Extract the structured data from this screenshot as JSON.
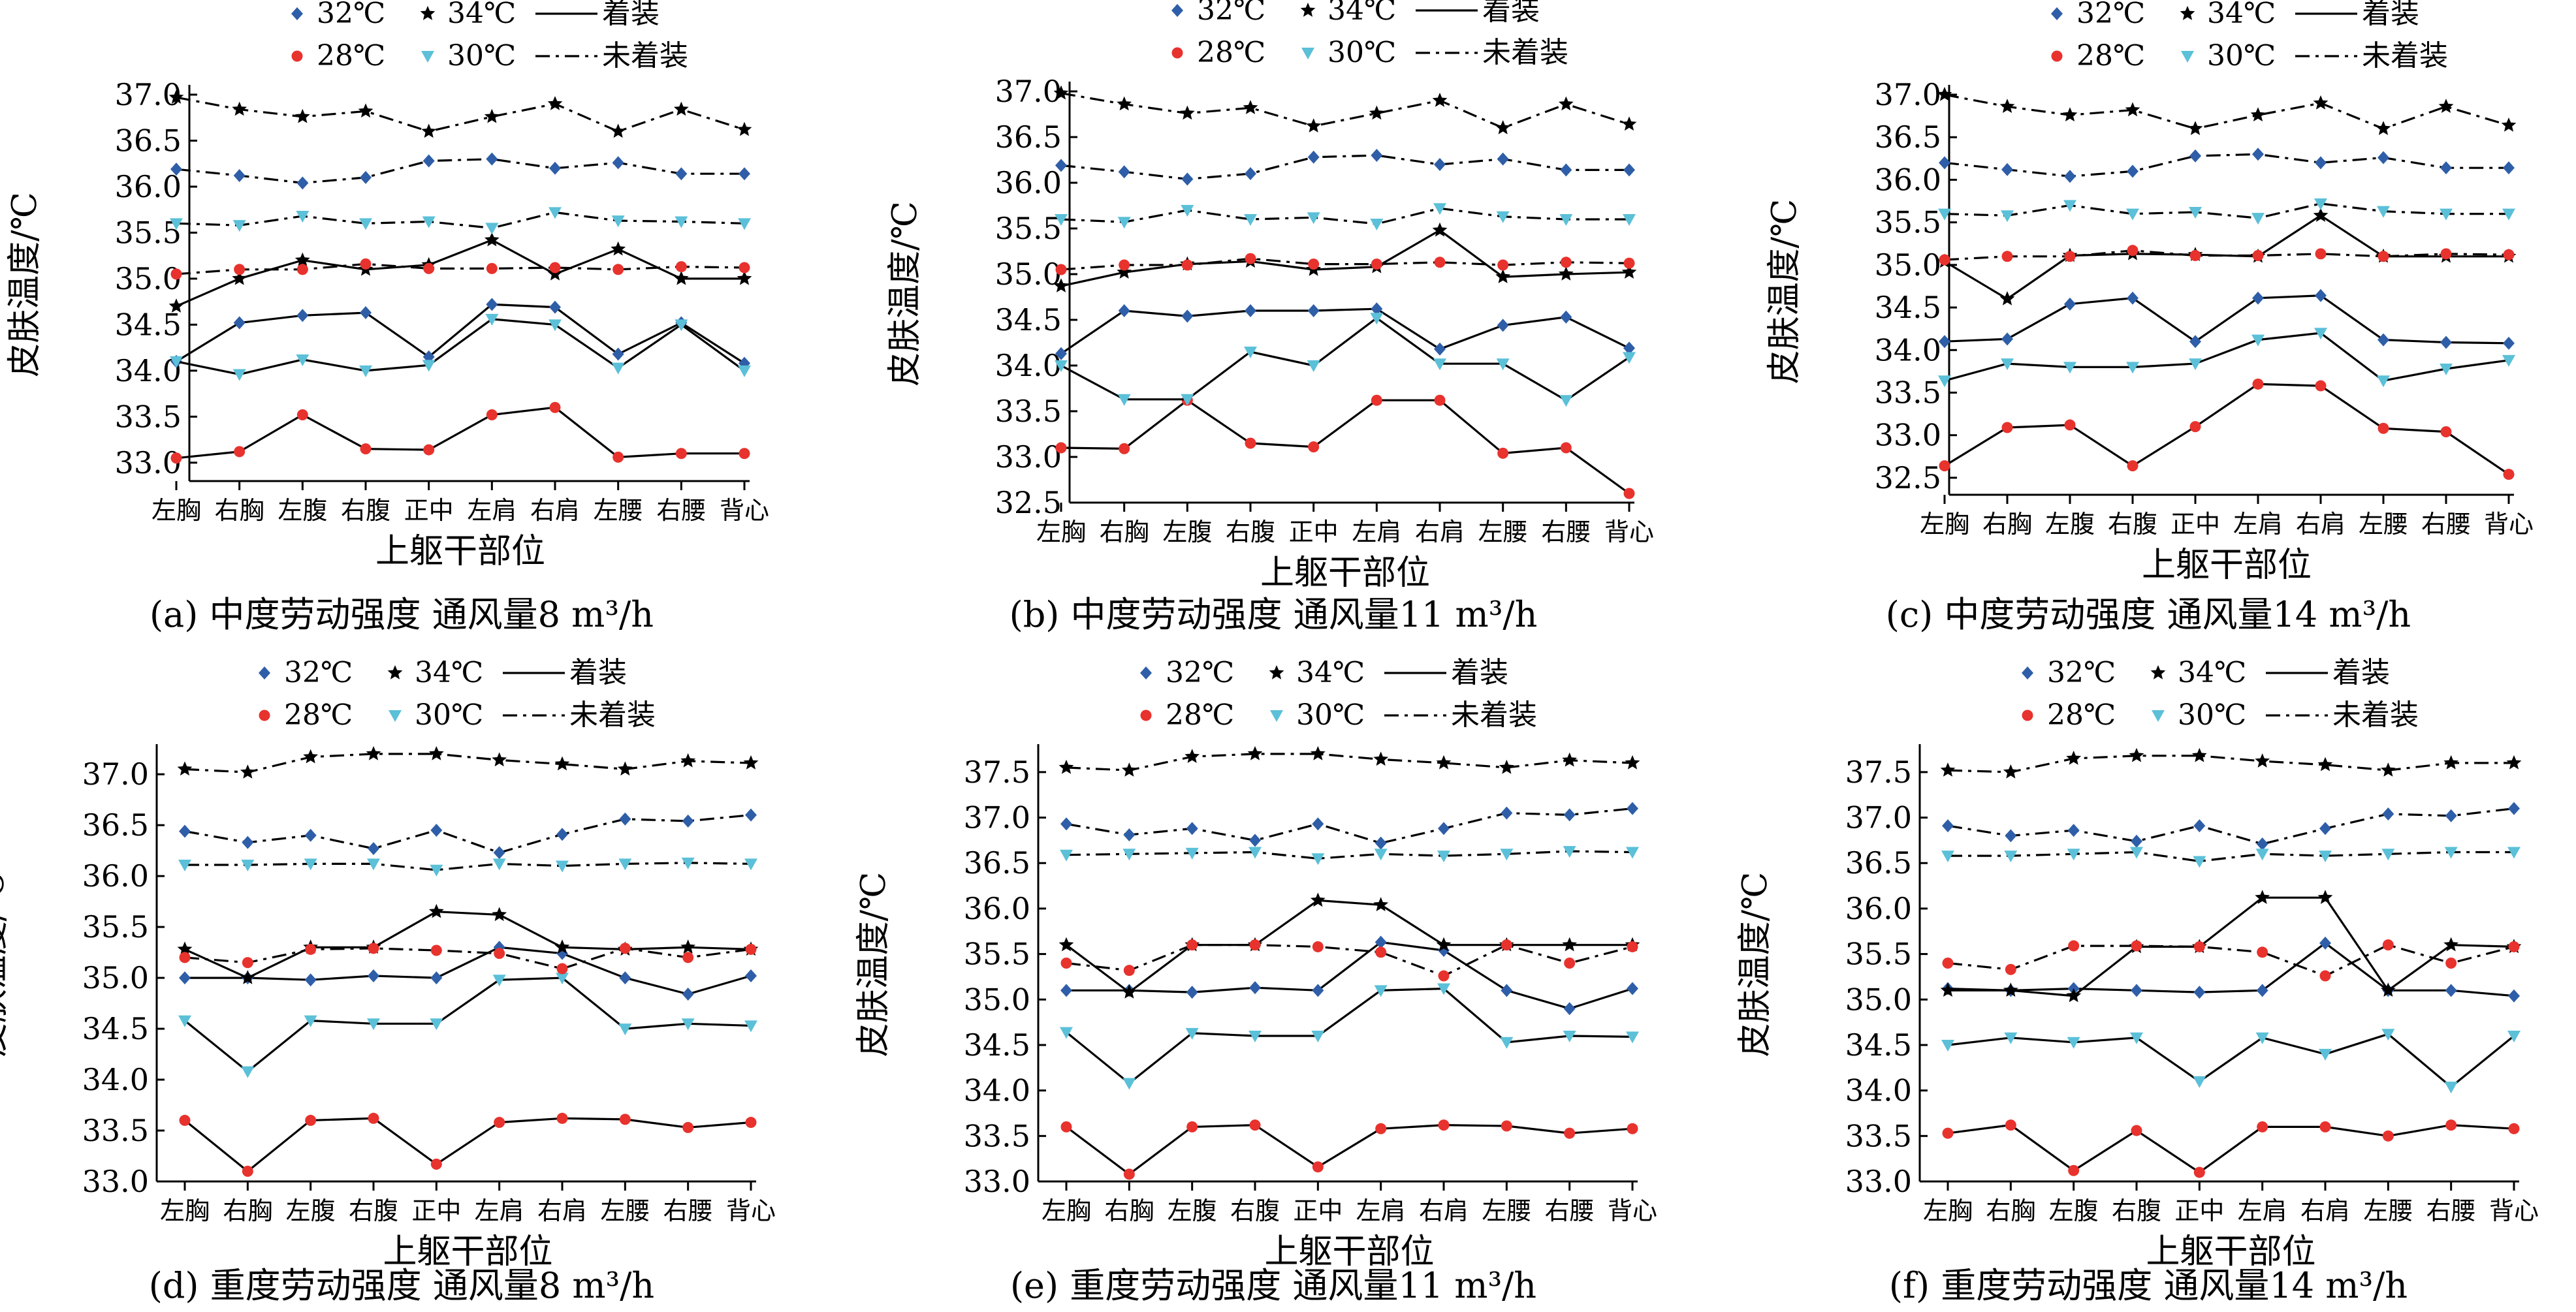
{
  "figure": {
    "legend": {
      "entries": [
        {
          "key": "s32",
          "label": "32℃",
          "marker": "diamond",
          "color": "#2f5ea8"
        },
        {
          "key": "s34",
          "label": "34℃",
          "marker": "star",
          "color": "#000000"
        },
        {
          "key": "solid",
          "label": "着装",
          "line": "solid"
        },
        {
          "key": "s28",
          "label": "28℃",
          "marker": "circle",
          "color": "#e8322d"
        },
        {
          "key": "s30",
          "label": "30℃",
          "marker": "triangle-down",
          "color": "#5bc0d8"
        },
        {
          "key": "dashdot",
          "label": "未着装",
          "line": "dashdot"
        }
      ]
    }
  },
  "chart_data": [
    {
      "type": "line",
      "panel": "a",
      "caption": "(a) 中度劳动强度  通风量8 m³/h",
      "xlabel": "上躯干部位",
      "ylabel": "皮肤温度/℃",
      "categories": [
        "左胸",
        "右胸",
        "左腹",
        "右腹",
        "正中",
        "左肩",
        "右肩",
        "左腰",
        "右腰",
        "背心"
      ],
      "ylim": [
        32.8,
        37.0
      ],
      "yticks": [
        "33.0",
        "33.5",
        "34.0",
        "34.5",
        "35.0",
        "35.5",
        "36.0",
        "36.5",
        "37.0"
      ],
      "series": [
        {
          "name": "32℃",
          "style": "solid",
          "values": [
            34.1,
            34.52,
            34.6,
            34.63,
            34.15,
            34.72,
            34.69,
            34.18,
            34.52,
            34.08
          ]
        },
        {
          "name": "34℃",
          "style": "solid",
          "values": [
            34.7,
            35.0,
            35.2,
            35.1,
            35.15,
            35.42,
            35.05,
            35.32,
            35.0,
            35.0
          ]
        },
        {
          "name": "28℃",
          "style": "solid",
          "values": [
            33.05,
            33.12,
            33.52,
            33.15,
            33.14,
            33.52,
            33.6,
            33.06,
            33.1,
            33.1
          ]
        },
        {
          "name": "30℃",
          "style": "solid",
          "values": [
            34.1,
            33.96,
            34.12,
            34.0,
            34.06,
            34.56,
            34.5,
            34.03,
            34.5,
            34.0
          ]
        },
        {
          "name": "32℃",
          "style": "dashdot",
          "values": [
            36.19,
            36.12,
            36.04,
            36.1,
            36.28,
            36.3,
            36.2,
            36.26,
            36.14,
            36.14
          ]
        },
        {
          "name": "34℃",
          "style": "dashdot",
          "values": [
            36.97,
            36.84,
            36.76,
            36.82,
            36.6,
            36.76,
            36.9,
            36.6,
            36.84,
            36.62
          ]
        },
        {
          "name": "28℃",
          "style": "dashdot",
          "values": [
            35.05,
            35.1,
            35.1,
            35.16,
            35.11,
            35.11,
            35.12,
            35.1,
            35.13,
            35.12
          ]
        },
        {
          "name": "30℃",
          "style": "dashdot",
          "values": [
            35.6,
            35.58,
            35.68,
            35.6,
            35.62,
            35.55,
            35.72,
            35.63,
            35.62,
            35.6
          ]
        }
      ]
    },
    {
      "type": "line",
      "panel": "b",
      "caption": "(b) 中度劳动强度  通风量11 m³/h",
      "xlabel": "上躯干部位",
      "ylabel": "皮肤温度/℃",
      "categories": [
        "左胸",
        "右胸",
        "左腹",
        "右腹",
        "正中",
        "左肩",
        "右肩",
        "左腰",
        "右腰",
        "背心"
      ],
      "ylim": [
        32.5,
        37.0
      ],
      "yticks": [
        "32.5",
        "33.0",
        "33.5",
        "34.0",
        "34.5",
        "35.0",
        "35.5",
        "36.0",
        "36.5",
        "37.0"
      ],
      "series": [
        {
          "name": "32℃",
          "style": "solid",
          "values": [
            34.13,
            34.6,
            34.54,
            34.6,
            34.6,
            34.62,
            34.18,
            34.44,
            34.53,
            34.19
          ]
        },
        {
          "name": "34℃",
          "style": "solid",
          "values": [
            34.87,
            35.02,
            35.11,
            35.14,
            35.05,
            35.08,
            35.48,
            34.97,
            35.0,
            35.02
          ]
        },
        {
          "name": "28℃",
          "style": "solid",
          "values": [
            33.1,
            33.09,
            33.62,
            33.15,
            33.11,
            33.62,
            33.62,
            33.04,
            33.1,
            32.6
          ]
        },
        {
          "name": "30℃",
          "style": "solid",
          "values": [
            34.0,
            33.63,
            33.63,
            34.15,
            34.0,
            34.52,
            34.02,
            34.02,
            33.62,
            34.09
          ]
        },
        {
          "name": "32℃",
          "style": "dashdot",
          "values": [
            36.19,
            36.12,
            36.04,
            36.1,
            36.28,
            36.3,
            36.2,
            36.26,
            36.14,
            36.14
          ]
        },
        {
          "name": "34℃",
          "style": "dashdot",
          "values": [
            36.98,
            36.86,
            36.76,
            36.82,
            36.62,
            36.76,
            36.9,
            36.6,
            36.86,
            36.64
          ]
        },
        {
          "name": "28℃",
          "style": "dashdot",
          "values": [
            35.05,
            35.1,
            35.1,
            35.17,
            35.11,
            35.11,
            35.13,
            35.1,
            35.13,
            35.12
          ]
        },
        {
          "name": "30℃",
          "style": "dashdot",
          "values": [
            35.6,
            35.57,
            35.7,
            35.6,
            35.62,
            35.55,
            35.72,
            35.63,
            35.6,
            35.6
          ]
        }
      ]
    },
    {
      "type": "line",
      "panel": "c",
      "caption": "(c) 中度劳动强度  通风量14 m³/h",
      "xlabel": "上躯干部位",
      "ylabel": "皮肤温度/℃",
      "categories": [
        "左胸",
        "右胸",
        "左腹",
        "右腹",
        "正中",
        "左肩",
        "右肩",
        "左腰",
        "右腰",
        "背心"
      ],
      "ylim": [
        32.3,
        37.0
      ],
      "yticks": [
        "32.5",
        "33.0",
        "33.5",
        "34.0",
        "34.5",
        "35.0",
        "35.5",
        "36.0",
        "36.5",
        "37.0"
      ],
      "series": [
        {
          "name": "32℃",
          "style": "solid",
          "values": [
            34.1,
            34.13,
            34.54,
            34.61,
            34.1,
            34.61,
            34.64,
            34.12,
            34.09,
            34.08
          ]
        },
        {
          "name": "34℃",
          "style": "solid",
          "values": [
            35.04,
            34.6,
            35.11,
            35.13,
            35.12,
            35.1,
            35.58,
            35.1,
            35.1,
            35.1
          ]
        },
        {
          "name": "28℃",
          "style": "solid",
          "values": [
            32.64,
            33.09,
            33.12,
            32.64,
            33.1,
            33.6,
            33.58,
            33.08,
            33.04,
            32.54
          ]
        },
        {
          "name": "30℃",
          "style": "solid",
          "values": [
            33.64,
            33.84,
            33.8,
            33.8,
            33.84,
            34.12,
            34.2,
            33.64,
            33.78,
            33.88
          ]
        },
        {
          "name": "32℃",
          "style": "dashdot",
          "values": [
            36.2,
            36.12,
            36.04,
            36.1,
            36.28,
            36.3,
            36.2,
            36.26,
            36.14,
            36.14
          ]
        },
        {
          "name": "34℃",
          "style": "dashdot",
          "values": [
            37.0,
            36.86,
            36.76,
            36.82,
            36.6,
            36.76,
            36.9,
            36.6,
            36.86,
            36.64
          ]
        },
        {
          "name": "28℃",
          "style": "dashdot",
          "values": [
            35.06,
            35.1,
            35.1,
            35.17,
            35.11,
            35.11,
            35.13,
            35.1,
            35.13,
            35.12
          ]
        },
        {
          "name": "30℃",
          "style": "dashdot",
          "values": [
            35.6,
            35.58,
            35.7,
            35.6,
            35.62,
            35.55,
            35.72,
            35.63,
            35.6,
            35.6
          ]
        }
      ]
    },
    {
      "type": "line",
      "panel": "d",
      "caption": "(d) 重度劳动强度  通风量8 m³/h",
      "xlabel": "上躯干部位",
      "ylabel": "皮肤温度/℃",
      "categories": [
        "左胸",
        "右胸",
        "左腹",
        "右腹",
        "正中",
        "左肩",
        "右肩",
        "左腰",
        "右腰",
        "背心"
      ],
      "ylim": [
        33.0,
        37.2
      ],
      "yticks": [
        "33.0",
        "33.5",
        "34.0",
        "34.5",
        "35.0",
        "35.5",
        "36.0",
        "36.5",
        "37.0"
      ],
      "series": [
        {
          "name": "32℃",
          "style": "solid",
          "values": [
            35.0,
            35.0,
            34.98,
            35.02,
            35.0,
            35.3,
            35.24,
            35.0,
            34.84,
            35.02
          ]
        },
        {
          "name": "34℃",
          "style": "solid",
          "values": [
            35.28,
            35.0,
            35.3,
            35.3,
            35.65,
            35.62,
            35.3,
            35.28,
            35.3,
            35.28
          ]
        },
        {
          "name": "28℃",
          "style": "solid",
          "values": [
            33.6,
            33.1,
            33.6,
            33.62,
            33.17,
            33.58,
            33.62,
            33.61,
            33.53,
            33.58
          ]
        },
        {
          "name": "30℃",
          "style": "solid",
          "values": [
            34.58,
            34.08,
            34.58,
            34.55,
            34.55,
            34.98,
            35.0,
            34.5,
            34.55,
            34.53
          ]
        },
        {
          "name": "32℃",
          "style": "dashdot",
          "values": [
            36.44,
            36.33,
            36.4,
            36.27,
            36.45,
            36.23,
            36.41,
            36.56,
            36.54,
            36.6
          ]
        },
        {
          "name": "34℃",
          "style": "dashdot",
          "values": [
            37.05,
            37.02,
            37.17,
            37.2,
            37.2,
            37.14,
            37.1,
            37.05,
            37.13,
            37.11
          ]
        },
        {
          "name": "28℃",
          "style": "dashdot",
          "values": [
            35.2,
            35.15,
            35.28,
            35.29,
            35.27,
            35.24,
            35.09,
            35.29,
            35.2,
            35.28
          ]
        },
        {
          "name": "30℃",
          "style": "dashdot",
          "values": [
            36.11,
            36.11,
            36.12,
            36.12,
            36.06,
            36.12,
            36.1,
            36.12,
            36.13,
            36.12
          ]
        }
      ]
    },
    {
      "type": "line",
      "panel": "e",
      "caption": "(e) 重度劳动强度  通风量11 m³/h",
      "xlabel": "上躯干部位",
      "ylabel": "皮肤温度/℃",
      "categories": [
        "左胸",
        "右胸",
        "左腹",
        "右腹",
        "正中",
        "左肩",
        "右肩",
        "左腰",
        "右腰",
        "背心"
      ],
      "ylim": [
        33.0,
        37.7
      ],
      "yticks": [
        "33.0",
        "33.5",
        "34.0",
        "34.5",
        "35.0",
        "35.5",
        "36.0",
        "36.5",
        "37.0",
        "37.5"
      ],
      "series": [
        {
          "name": "32℃",
          "style": "solid",
          "values": [
            35.1,
            35.1,
            35.08,
            35.13,
            35.1,
            35.63,
            35.54,
            35.1,
            34.9,
            35.12
          ]
        },
        {
          "name": "34℃",
          "style": "solid",
          "values": [
            35.6,
            35.08,
            35.6,
            35.6,
            36.09,
            36.04,
            35.6,
            35.6,
            35.6,
            35.6
          ]
        },
        {
          "name": "28℃",
          "style": "solid",
          "values": [
            33.6,
            33.08,
            33.6,
            33.62,
            33.16,
            33.58,
            33.62,
            33.61,
            33.53,
            33.58
          ]
        },
        {
          "name": "30℃",
          "style": "solid",
          "values": [
            34.64,
            34.08,
            34.63,
            34.6,
            34.6,
            35.1,
            35.12,
            34.53,
            34.6,
            34.59
          ]
        },
        {
          "name": "32℃",
          "style": "dashdot",
          "values": [
            36.93,
            36.81,
            36.88,
            36.75,
            36.93,
            36.72,
            36.88,
            37.05,
            37.03,
            37.1
          ]
        },
        {
          "name": "34℃",
          "style": "dashdot",
          "values": [
            37.55,
            37.52,
            37.67,
            37.7,
            37.7,
            37.64,
            37.6,
            37.55,
            37.63,
            37.6
          ]
        },
        {
          "name": "28℃",
          "style": "dashdot",
          "values": [
            35.4,
            35.32,
            35.6,
            35.6,
            35.58,
            35.52,
            35.26,
            35.6,
            35.4,
            35.58
          ]
        },
        {
          "name": "30℃",
          "style": "dashdot",
          "values": [
            36.59,
            36.6,
            36.61,
            36.62,
            36.55,
            36.6,
            36.58,
            36.6,
            36.63,
            36.62
          ]
        }
      ]
    },
    {
      "type": "line",
      "panel": "f",
      "caption": "(f) 重度劳动强度  通风量14 m³/h",
      "xlabel": "上躯干部位",
      "ylabel": "皮肤温度/℃",
      "categories": [
        "左胸",
        "右胸",
        "左腹",
        "右腹",
        "正中",
        "左肩",
        "右肩",
        "左腰",
        "右腰",
        "背心"
      ],
      "ylim": [
        33.0,
        37.7
      ],
      "yticks": [
        "33.0",
        "33.5",
        "34.0",
        "34.5",
        "35.0",
        "35.5",
        "36.0",
        "36.5",
        "37.0",
        "37.5"
      ],
      "series": [
        {
          "name": "32℃",
          "style": "solid",
          "values": [
            35.12,
            35.1,
            35.12,
            35.1,
            35.08,
            35.1,
            35.62,
            35.1,
            35.1,
            35.04
          ]
        },
        {
          "name": "34℃",
          "style": "solid",
          "values": [
            35.1,
            35.1,
            35.04,
            35.58,
            35.58,
            36.12,
            36.12,
            35.1,
            35.6,
            35.58
          ]
        },
        {
          "name": "28℃",
          "style": "solid",
          "values": [
            33.53,
            33.62,
            33.12,
            33.56,
            33.1,
            33.6,
            33.6,
            33.5,
            33.62,
            33.58
          ]
        },
        {
          "name": "30℃",
          "style": "solid",
          "values": [
            34.5,
            34.58,
            34.53,
            34.58,
            34.1,
            34.58,
            34.4,
            34.62,
            34.04,
            34.6
          ]
        },
        {
          "name": "32℃",
          "style": "dashdot",
          "values": [
            36.91,
            36.8,
            36.86,
            36.74,
            36.91,
            36.71,
            36.88,
            37.04,
            37.02,
            37.1
          ]
        },
        {
          "name": "34℃",
          "style": "dashdot",
          "values": [
            37.52,
            37.5,
            37.65,
            37.68,
            37.68,
            37.62,
            37.58,
            37.52,
            37.6,
            37.6
          ]
        },
        {
          "name": "28℃",
          "style": "dashdot",
          "values": [
            35.4,
            35.33,
            35.59,
            35.59,
            35.58,
            35.52,
            35.26,
            35.6,
            35.4,
            35.58
          ]
        },
        {
          "name": "30℃",
          "style": "dashdot",
          "values": [
            36.58,
            36.58,
            36.6,
            36.62,
            36.52,
            36.6,
            36.58,
            36.6,
            36.62,
            36.62
          ]
        }
      ]
    }
  ]
}
